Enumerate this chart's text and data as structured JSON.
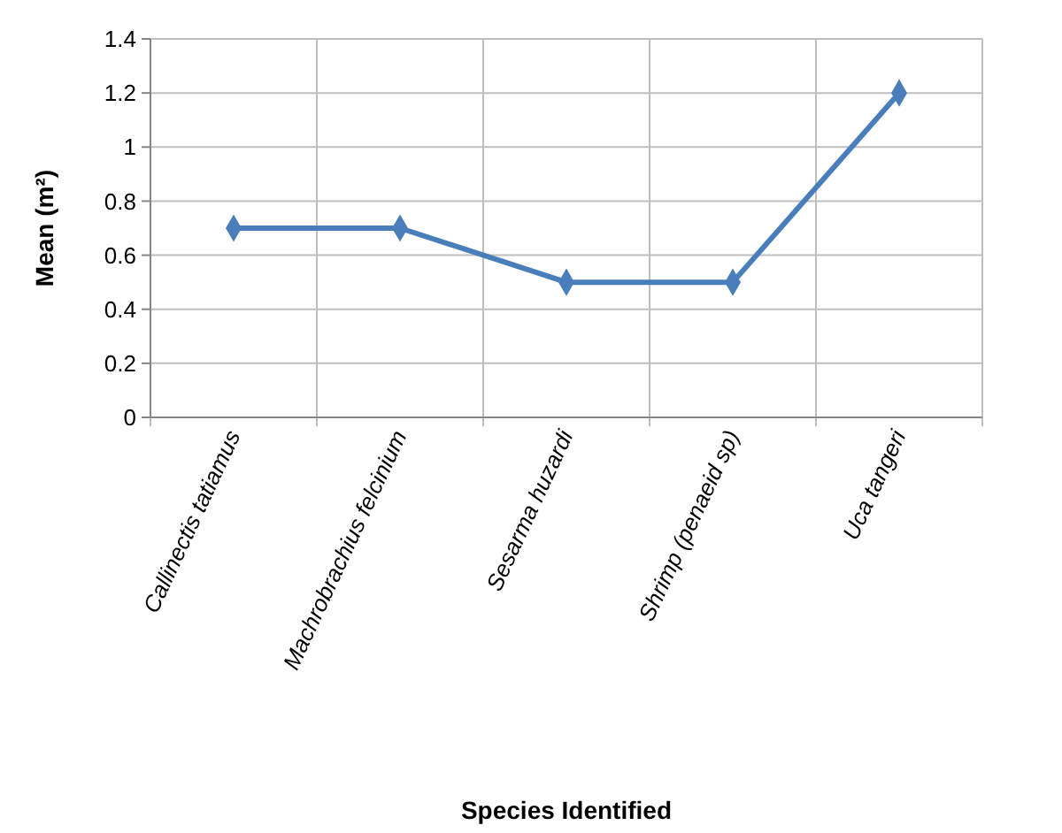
{
  "chart_data": {
    "type": "line",
    "xlabel": "Species Identified",
    "ylabel": "Mean (m²)",
    "categories": [
      "Callinectis tatiamus",
      "Machrobrachius felcinium",
      "Sesarma huzardi",
      "Shrimp (penaeid sp)",
      "Uca tangeri"
    ],
    "series": [
      {
        "color": "#4a7ebb",
        "values": [
          0.7,
          0.7,
          0.5,
          0.5,
          1.2
        ]
      }
    ],
    "ylim": [
      0,
      1.4
    ],
    "yticks": [
      0,
      0.2,
      0.4,
      0.6,
      0.8,
      1,
      1.2,
      1.4
    ],
    "grid": true,
    "marker": "diamond",
    "line_style": "solid"
  }
}
